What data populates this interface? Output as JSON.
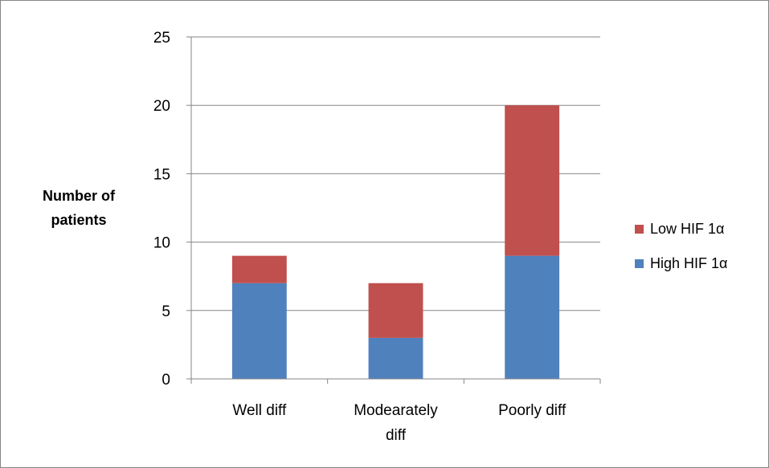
{
  "chart_data": {
    "type": "bar",
    "stacked": true,
    "categories": [
      "Well diff",
      "Modearately diff",
      "Poorly diff"
    ],
    "category_label_lines": [
      [
        "Well diff"
      ],
      [
        "Modearately",
        "diff"
      ],
      [
        "Poorly diff"
      ]
    ],
    "series": [
      {
        "name": "High HIF 1α",
        "values": [
          7,
          3,
          9
        ],
        "color": "#4F81BD"
      },
      {
        "name": "Low HIF 1α",
        "values": [
          2,
          4,
          11
        ],
        "color": "#C0504D"
      }
    ],
    "title": "",
    "xlabel": "",
    "ylabel_lines": [
      "Number of",
      "patients"
    ],
    "ylim": [
      0,
      25
    ],
    "yticks": [
      "0",
      "5",
      "10",
      "15",
      "20",
      "25"
    ],
    "grid": true,
    "legend_position": "right",
    "legend_order": [
      "Low HIF 1α",
      "High HIF 1α"
    ]
  }
}
